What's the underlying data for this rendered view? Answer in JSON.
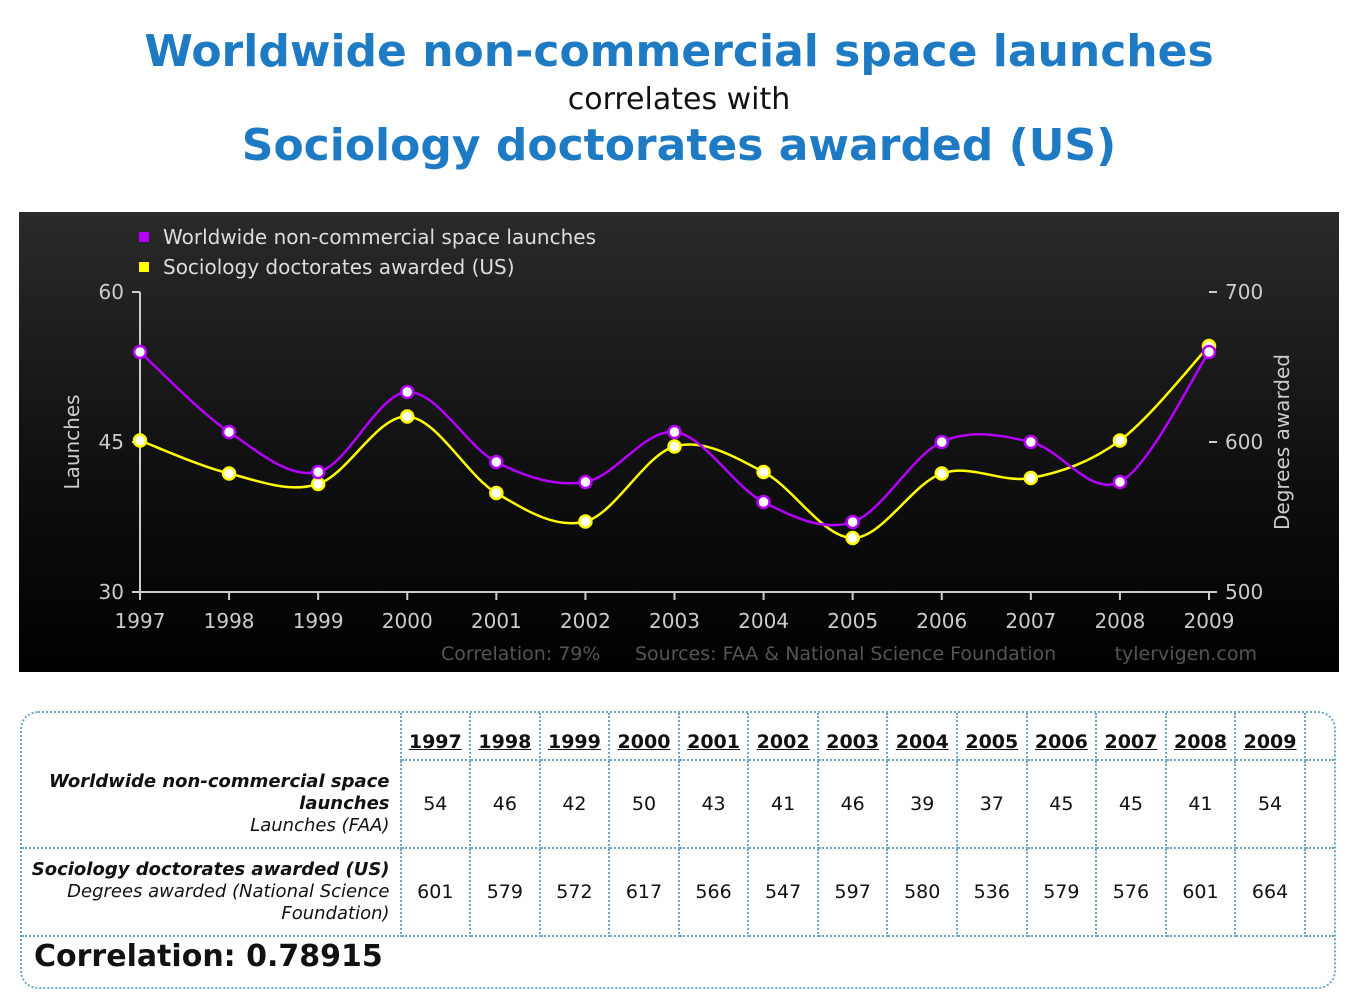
{
  "header": {
    "title_main": "Worldwide non-commercial space launches",
    "connector": "correlates with",
    "title_secondary": "Sociology doctorates awarded (US)"
  },
  "chart_data": {
    "type": "line",
    "x": [
      "1997",
      "1998",
      "1999",
      "2000",
      "2001",
      "2002",
      "2003",
      "2004",
      "2005",
      "2006",
      "2007",
      "2008",
      "2009"
    ],
    "series": [
      {
        "name": "Worldwide non-commercial space launches",
        "axis": "left",
        "color": "#b400ff",
        "values": [
          54,
          46,
          42,
          50,
          43,
          41,
          46,
          39,
          37,
          45,
          45,
          41,
          54
        ]
      },
      {
        "name": "Sociology doctorates awarded (US)",
        "axis": "right",
        "color": "#ffff00",
        "values": [
          601,
          579,
          572,
          617,
          566,
          547,
          597,
          580,
          536,
          579,
          576,
          601,
          664
        ]
      }
    ],
    "ylabel_left": "Launches",
    "ylabel_right": "Degrees awarded",
    "ylim_left": [
      30,
      60
    ],
    "ylim_right": [
      500,
      700
    ],
    "yticks_left": [
      "30",
      "45",
      "60"
    ],
    "yticks_right": [
      "500",
      "600",
      "700"
    ],
    "legend_position": "top-left",
    "footer": {
      "correlation": "Correlation: 79%",
      "sources": "Sources: FAA & National Science Foundation",
      "site": "tylervigen.com"
    }
  },
  "table": {
    "years": [
      "1997",
      "1998",
      "1999",
      "2000",
      "2001",
      "2002",
      "2003",
      "2004",
      "2005",
      "2006",
      "2007",
      "2008",
      "2009"
    ],
    "row1": {
      "label_bold": "Worldwide non-commercial space launches",
      "label_sub": "Launches (FAA)",
      "values": [
        "54",
        "46",
        "42",
        "50",
        "43",
        "41",
        "46",
        "39",
        "37",
        "45",
        "45",
        "41",
        "54"
      ]
    },
    "row2": {
      "label_bold": "Sociology doctorates awarded (US)",
      "label_sub": "Degrees awarded (National Science Foundation)",
      "values": [
        "601",
        "579",
        "572",
        "617",
        "566",
        "547",
        "597",
        "580",
        "536",
        "579",
        "576",
        "601",
        "664"
      ]
    },
    "correlation": "Correlation: 0.78915"
  }
}
